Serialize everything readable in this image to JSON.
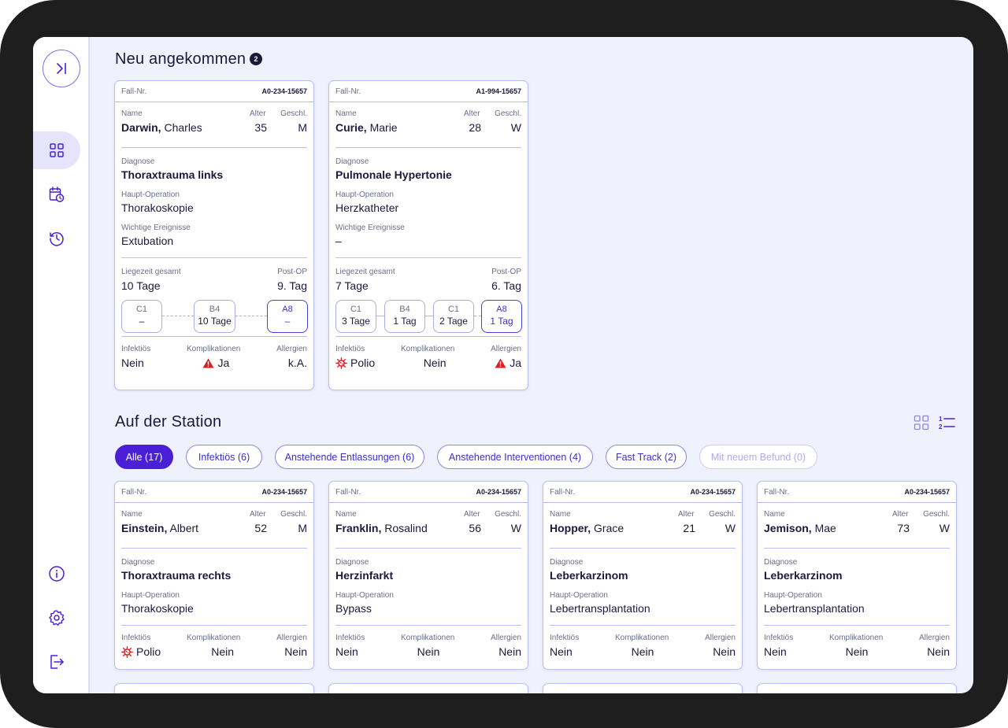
{
  "nav": {
    "icons": [
      "collapse-icon",
      "dashboard-icon",
      "calendar-icon",
      "history-icon",
      "info-icon",
      "settings-icon",
      "logout-icon"
    ]
  },
  "labels": {
    "case_no": "Fall-Nr.",
    "name": "Name",
    "age": "Alter",
    "sex": "Geschl.",
    "diagnosis": "Diagnose",
    "main_op": "Haupt-Operation",
    "events": "Wichtige Ereignisse",
    "stay_total": "Liegezeit gesamt",
    "post_op": "Post-OP",
    "infectious": "Infektiös",
    "complications": "Komplikationen",
    "allergies": "Allergien"
  },
  "new_arrivals": {
    "title": "Neu angekommen",
    "count": "2",
    "cards": [
      {
        "case_no": "A0-234-15657",
        "last_name": "Darwin,",
        "first_name": "Charles",
        "age": "35",
        "sex": "M",
        "diagnosis": "Thoraxtrauma links",
        "main_op": "Thorakoskopie",
        "events": "Extubation",
        "stay_total": "10 Tage",
        "post_op": "9. Tag",
        "stations": [
          {
            "name": "C1",
            "duration": "–"
          },
          {
            "name": "B4",
            "duration": "10 Tage"
          },
          {
            "name": "A8",
            "duration": "–"
          }
        ],
        "infectious": "Nein",
        "complications": "Ja",
        "allergies": "k.A."
      },
      {
        "case_no": "A1-994-15657",
        "last_name": "Curie,",
        "first_name": "Marie",
        "age": "28",
        "sex": "W",
        "diagnosis": "Pulmonale Hypertonie",
        "main_op": "Herzkatheter",
        "events": "–",
        "stay_total": "7 Tage",
        "post_op": "6. Tag",
        "stations": [
          {
            "name": "C1",
            "duration": "3 Tage"
          },
          {
            "name": "B4",
            "duration": "1 Tag"
          },
          {
            "name": "C1",
            "duration": "2 Tage"
          },
          {
            "name": "A8",
            "duration": "1 Tag"
          }
        ],
        "infectious": "Polio",
        "complications": "Nein",
        "allergies": "Ja"
      }
    ]
  },
  "station": {
    "title": "Auf der Station",
    "filters": [
      {
        "label": "Alle (17)",
        "state": "active"
      },
      {
        "label": "Infektiös (6)",
        "state": "normal"
      },
      {
        "label": "Anstehende Entlassungen (6)",
        "state": "normal"
      },
      {
        "label": "Anstehende Interventionen (4)",
        "state": "normal"
      },
      {
        "label": "Fast Track (2)",
        "state": "normal"
      },
      {
        "label": "Mit neuem Befund (0)",
        "state": "disabled"
      }
    ],
    "cards": [
      {
        "case_no": "A0-234-15657",
        "last_name": "Einstein,",
        "first_name": "Albert",
        "age": "52",
        "sex": "M",
        "diagnosis": "Thoraxtrauma rechts",
        "main_op": "Thorakoskopie",
        "infectious": "Polio",
        "complications": "Nein",
        "allergies": "Nein"
      },
      {
        "case_no": "A0-234-15657",
        "last_name": "Franklin,",
        "first_name": "Rosalind",
        "age": "56",
        "sex": "W",
        "diagnosis": "Herzinfarkt",
        "main_op": "Bypass",
        "infectious": "Nein",
        "complications": "Nein",
        "allergies": "Nein"
      },
      {
        "case_no": "A0-234-15657",
        "last_name": "Hopper,",
        "first_name": "Grace",
        "age": "21",
        "sex": "W",
        "diagnosis": "Leberkarzinom",
        "main_op": "Lebertransplantation",
        "infectious": "Nein",
        "complications": "Nein",
        "allergies": "Nein"
      },
      {
        "case_no": "A0-234-15657",
        "last_name": "Jemison,",
        "first_name": "Mae",
        "age": "73",
        "sex": "W",
        "diagnosis": "Leberkarzinom",
        "main_op": "Lebertransplantation",
        "infectious": "Nein",
        "complications": "Nein",
        "allergies": "Nein"
      }
    ]
  },
  "colors": {
    "accent": "#4a1fd6",
    "border": "#b9bff0",
    "warning": "#d81f26",
    "background": "#eff1fd"
  }
}
